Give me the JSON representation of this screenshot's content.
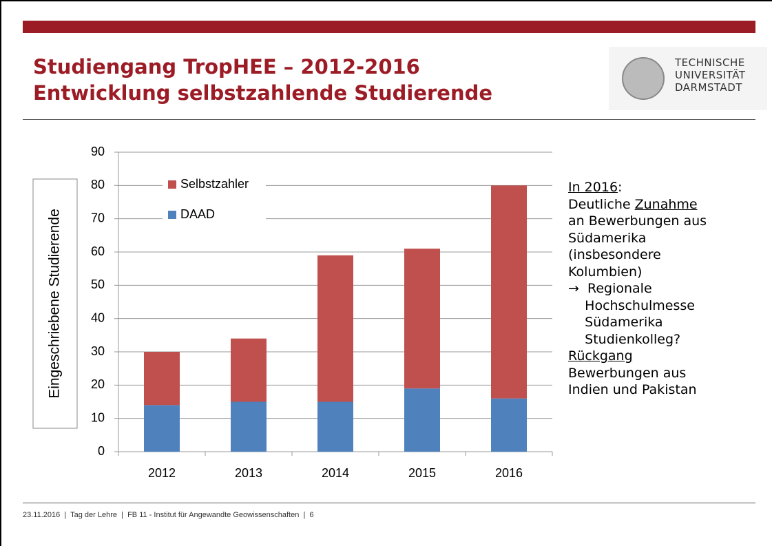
{
  "header": {
    "title_lines": [
      "Studiengang TropHEE – 2012-2016",
      "Entwicklung selbstzahlende Studierende"
    ],
    "logo_lines": [
      "TECHNISCHE",
      "UNIVERSITÄT",
      "DARMSTADT"
    ]
  },
  "chart_data": {
    "type": "bar",
    "stacked": true,
    "ylabel": "Eingeschriebene Studierende",
    "categories": [
      "2012",
      "2013",
      "2014",
      "2015",
      "2016"
    ],
    "series": [
      {
        "name": "DAAD",
        "color": "#4f81bd",
        "values": [
          14,
          15,
          15,
          19,
          16
        ]
      },
      {
        "name": "Selbstzahler",
        "color": "#c0504d",
        "values": [
          16,
          19,
          44,
          42,
          64
        ]
      }
    ],
    "ylim": [
      0,
      90
    ],
    "yticks": [
      0,
      10,
      20,
      30,
      40,
      50,
      60,
      70,
      80,
      90
    ],
    "grid": true,
    "legend": "upper left"
  },
  "notes": [
    [
      {
        "text": "In 2016",
        "underline": true
      },
      {
        "text": ":",
        "underline": false
      }
    ],
    [
      {
        "text": "Deutliche ",
        "underline": false
      },
      {
        "text": "Zunahme",
        "underline": true
      }
    ],
    [
      {
        "text": "an Bewerbungen aus",
        "underline": false
      }
    ],
    [
      {
        "text": "Südamerika",
        "underline": false
      }
    ],
    [
      {
        "text": "(insbesondere",
        "underline": false
      }
    ],
    [
      {
        "text": "Kolumbien)",
        "underline": false
      }
    ],
    [
      {
        "text": "→  Regionale",
        "underline": false
      }
    ],
    [
      {
        "text": "    Hochschulmesse",
        "underline": false
      }
    ],
    [
      {
        "text": "    Südamerika",
        "underline": false
      }
    ],
    [
      {
        "text": "    Studienkolleg?",
        "underline": false
      }
    ],
    [
      {
        "text": "Rückgang",
        "underline": true
      }
    ],
    [
      {
        "text": "Bewerbungen aus",
        "underline": false
      }
    ],
    [
      {
        "text": "Indien und Pakistan",
        "underline": false
      }
    ]
  ],
  "footer": "23.11.2016  |  Tag der Lehre  |  FB 11 - Institut für Angewandte Geowissenschaften  |  6"
}
